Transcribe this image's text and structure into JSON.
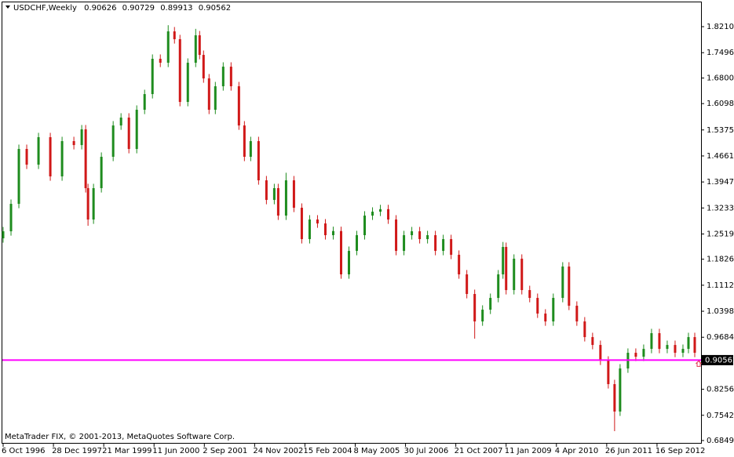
{
  "chart_data": {
    "type": "candlestick",
    "symbol": "USDCHF,Weekly",
    "footer": "MetaTrader FIX, © 2001-2013, MetaQuotes Software Corp.",
    "up_color": "#1e8c1e",
    "down_color": "#d01818",
    "line_color": "#ff00ff",
    "horizontal_line": 0.90562,
    "xlim": [
      -4,
      888
    ],
    "ylim": [
      0.6784,
      1.8899
    ],
    "xticks": [
      {
        "value": 0,
        "label": "6 Oct 1996"
      },
      {
        "value": 64,
        "label": "28 Dec 1997"
      },
      {
        "value": 128,
        "label": "21 Mar 1999"
      },
      {
        "value": 192,
        "label": "11 Jun 2000"
      },
      {
        "value": 256,
        "label": "2 Sep 2001"
      },
      {
        "value": 320,
        "label": "24 Nov 2002"
      },
      {
        "value": 384,
        "label": "15 Feb 2004"
      },
      {
        "value": 448,
        "label": "8 May 2005"
      },
      {
        "value": 512,
        "label": "30 Jul 2006"
      },
      {
        "value": 576,
        "label": "21 Oct 2007"
      },
      {
        "value": 640,
        "label": "11 Jan 2009"
      },
      {
        "value": 704,
        "label": "4 Apr 2010"
      },
      {
        "value": 768,
        "label": "26 Jun 2011"
      },
      {
        "value": 832,
        "label": "16 Sep 2012"
      }
    ],
    "yticks": [
      {
        "value": 1.821,
        "label": "1.82100"
      },
      {
        "value": 1.7496,
        "label": "1.74960"
      },
      {
        "value": 1.68,
        "label": "1.68000"
      },
      {
        "value": 1.6098,
        "label": "1.60980"
      },
      {
        "value": 1.5375,
        "label": "1.53750"
      },
      {
        "value": 1.4661,
        "label": "1.46610"
      },
      {
        "value": 1.3947,
        "label": "1.39470"
      },
      {
        "value": 1.3233,
        "label": "1.32330"
      },
      {
        "value": 1.2519,
        "label": "1.25190"
      },
      {
        "value": 1.1826,
        "label": "1.18260"
      },
      {
        "value": 1.1112,
        "label": "1.11120"
      },
      {
        "value": 1.0398,
        "label": "1.03980"
      },
      {
        "value": 0.9684,
        "label": "0.96840"
      },
      {
        "value": 0.8256,
        "label": "0.82560"
      },
      {
        "value": 0.7542,
        "label": "0.75420"
      },
      {
        "value": 0.6849,
        "label": "0.68490"
      }
    ],
    "x": [
      0,
      10,
      20,
      30,
      45,
      60,
      75,
      90,
      100,
      105,
      108,
      115,
      125,
      140,
      150,
      160,
      170,
      180,
      190,
      200,
      210,
      218,
      225,
      235,
      245,
      250,
      255,
      262,
      270,
      280,
      290,
      300,
      307,
      315,
      325,
      335,
      345,
      350,
      360,
      370,
      380,
      390,
      400,
      410,
      420,
      430,
      440,
      450,
      460,
      470,
      480,
      490,
      500,
      510,
      520,
      530,
      540,
      550,
      560,
      570,
      580,
      590,
      600,
      610,
      620,
      630,
      636,
      640,
      650,
      660,
      670,
      680,
      690,
      700,
      712,
      720,
      730,
      740,
      750,
      760,
      770,
      778,
      785,
      795,
      805,
      815,
      825,
      835,
      845,
      855,
      865,
      872,
      880,
      886
    ],
    "open": [
      1.24,
      1.2593,
      1.3346,
      1.4853,
      1.4422,
      1.5176,
      1.41,
      1.5068,
      1.496,
      1.5391,
      1.3777,
      1.2916,
      1.3777,
      1.4638,
      1.5498,
      1.5714,
      1.4853,
      1.5929,
      1.6359,
      1.7328,
      1.722,
      1.8081,
      1.7866,
      1.6144,
      1.722,
      1.7973,
      1.7435,
      1.679,
      1.5929,
      1.6574,
      1.7112,
      1.6574,
      1.5498,
      1.4638,
      1.5068,
      1.3992,
      1.3454,
      1.3777,
      1.3024,
      1.3992,
      1.3239,
      1.2378,
      1.2916,
      1.2808,
      1.2486,
      1.26,
      1.141,
      1.2055,
      1.2486,
      1.3024,
      1.3131,
      1.32,
      1.2916,
      1.2055,
      1.2486,
      1.2593,
      1.2378,
      1.2486,
      1.2055,
      1.2378,
      1.1948,
      1.141,
      1.0872,
      1.0118,
      1.0441,
      1.0764,
      1.141,
      1.2163,
      1.0979,
      1.184,
      1.0979,
      1.0764,
      1.0334,
      1.0118,
      1.0764,
      1.1625,
      1.0549,
      1.0118,
      0.9688,
      0.9473,
      0.9042,
      0.8397,
      0.7644,
      0.8827,
      0.9258,
      0.915,
      0.9365,
      0.9796,
      0.9365,
      0.9472,
      0.9258,
      0.9365,
      0.9688,
      0.90626
    ],
    "high": [
      1.2713,
      1.3466,
      1.4973,
      1.4973,
      1.5296,
      1.5296,
      1.5188,
      1.5188,
      1.5511,
      1.5511,
      1.3897,
      1.3897,
      1.4758,
      1.5618,
      1.5834,
      1.5834,
      1.6049,
      1.6479,
      1.7448,
      1.7448,
      1.825,
      1.8201,
      1.7986,
      1.734,
      1.815,
      1.8093,
      1.7555,
      1.691,
      1.6694,
      1.7232,
      1.7232,
      1.6694,
      1.5618,
      1.5188,
      1.5188,
      1.4112,
      1.3897,
      1.3897,
      1.42,
      1.4112,
      1.3359,
      1.3036,
      1.3036,
      1.2928,
      1.272,
      1.272,
      1.2175,
      1.2606,
      1.3144,
      1.3251,
      1.332,
      1.332,
      1.3036,
      1.2606,
      1.2713,
      1.2713,
      1.2606,
      1.2606,
      1.2498,
      1.2498,
      1.2068,
      1.153,
      1.0992,
      1.0561,
      1.0884,
      1.153,
      1.23,
      1.2283,
      1.196,
      1.196,
      1.1099,
      1.0884,
      1.0454,
      1.0884,
      1.1745,
      1.1745,
      1.0669,
      1.0238,
      0.9808,
      0.9593,
      0.9162,
      0.8517,
      0.8947,
      0.9378,
      0.9378,
      0.9485,
      0.9916,
      0.9916,
      0.9592,
      0.9592,
      0.9485,
      0.9808,
      0.9808,
      0.90729
    ],
    "low": [
      1.228,
      1.2473,
      1.3226,
      1.4302,
      1.4302,
      1.398,
      1.398,
      1.484,
      1.484,
      1.3657,
      1.2744,
      1.2796,
      1.3657,
      1.4518,
      1.5378,
      1.4733,
      1.4733,
      1.5809,
      1.6239,
      1.71,
      1.71,
      1.7746,
      1.6024,
      1.6024,
      1.71,
      1.7315,
      1.667,
      1.5809,
      1.5809,
      1.6454,
      1.6454,
      1.5378,
      1.4518,
      1.4518,
      1.3872,
      1.3334,
      1.3334,
      1.2904,
      1.2904,
      1.3119,
      1.2258,
      1.2258,
      1.2688,
      1.2366,
      1.2366,
      1.129,
      1.129,
      1.1935,
      1.2366,
      1.2904,
      1.3011,
      1.2796,
      1.1935,
      1.1935,
      1.2366,
      1.2258,
      1.2258,
      1.1935,
      1.1935,
      1.1828,
      1.129,
      1.0752,
      0.9645,
      0.9998,
      1.0321,
      1.0644,
      1.129,
      1.0859,
      1.0859,
      1.0859,
      1.0644,
      1.0214,
      0.9998,
      0.9998,
      1.0644,
      1.0429,
      0.9998,
      0.9568,
      0.9353,
      0.8922,
      0.8277,
      0.7106,
      0.7524,
      0.8707,
      0.903,
      0.903,
      0.9245,
      0.9245,
      0.9245,
      0.9138,
      0.9138,
      0.9245,
      0.9138,
      0.89913
    ],
    "close": [
      1.2593,
      1.3346,
      1.4853,
      1.4422,
      1.5176,
      1.41,
      1.5068,
      1.496,
      1.5391,
      1.3777,
      1.2916,
      1.3777,
      1.4638,
      1.5498,
      1.5714,
      1.4853,
      1.5929,
      1.6359,
      1.7328,
      1.722,
      1.8081,
      1.7866,
      1.6144,
      1.722,
      1.7973,
      1.7435,
      1.679,
      1.5929,
      1.6574,
      1.7112,
      1.6574,
      1.5498,
      1.4638,
      1.5068,
      1.3992,
      1.3454,
      1.3777,
      1.3024,
      1.3992,
      1.3239,
      1.2378,
      1.2916,
      1.2808,
      1.2486,
      1.26,
      1.141,
      1.2055,
      1.2486,
      1.3024,
      1.3131,
      1.32,
      1.2916,
      1.2055,
      1.2486,
      1.2593,
      1.2378,
      1.2486,
      1.2055,
      1.2378,
      1.1948,
      1.141,
      1.0872,
      1.0118,
      1.0441,
      1.0764,
      1.141,
      1.2163,
      1.0979,
      1.184,
      1.0979,
      1.0764,
      1.0334,
      1.0118,
      1.0764,
      1.1625,
      1.0549,
      1.0118,
      0.9688,
      0.9473,
      0.9042,
      0.8397,
      0.7644,
      0.8827,
      0.9258,
      0.915,
      0.9365,
      0.9796,
      0.9365,
      0.9472,
      0.9258,
      0.9365,
      0.9688,
      0.9258,
      0.90562
    ]
  }
}
